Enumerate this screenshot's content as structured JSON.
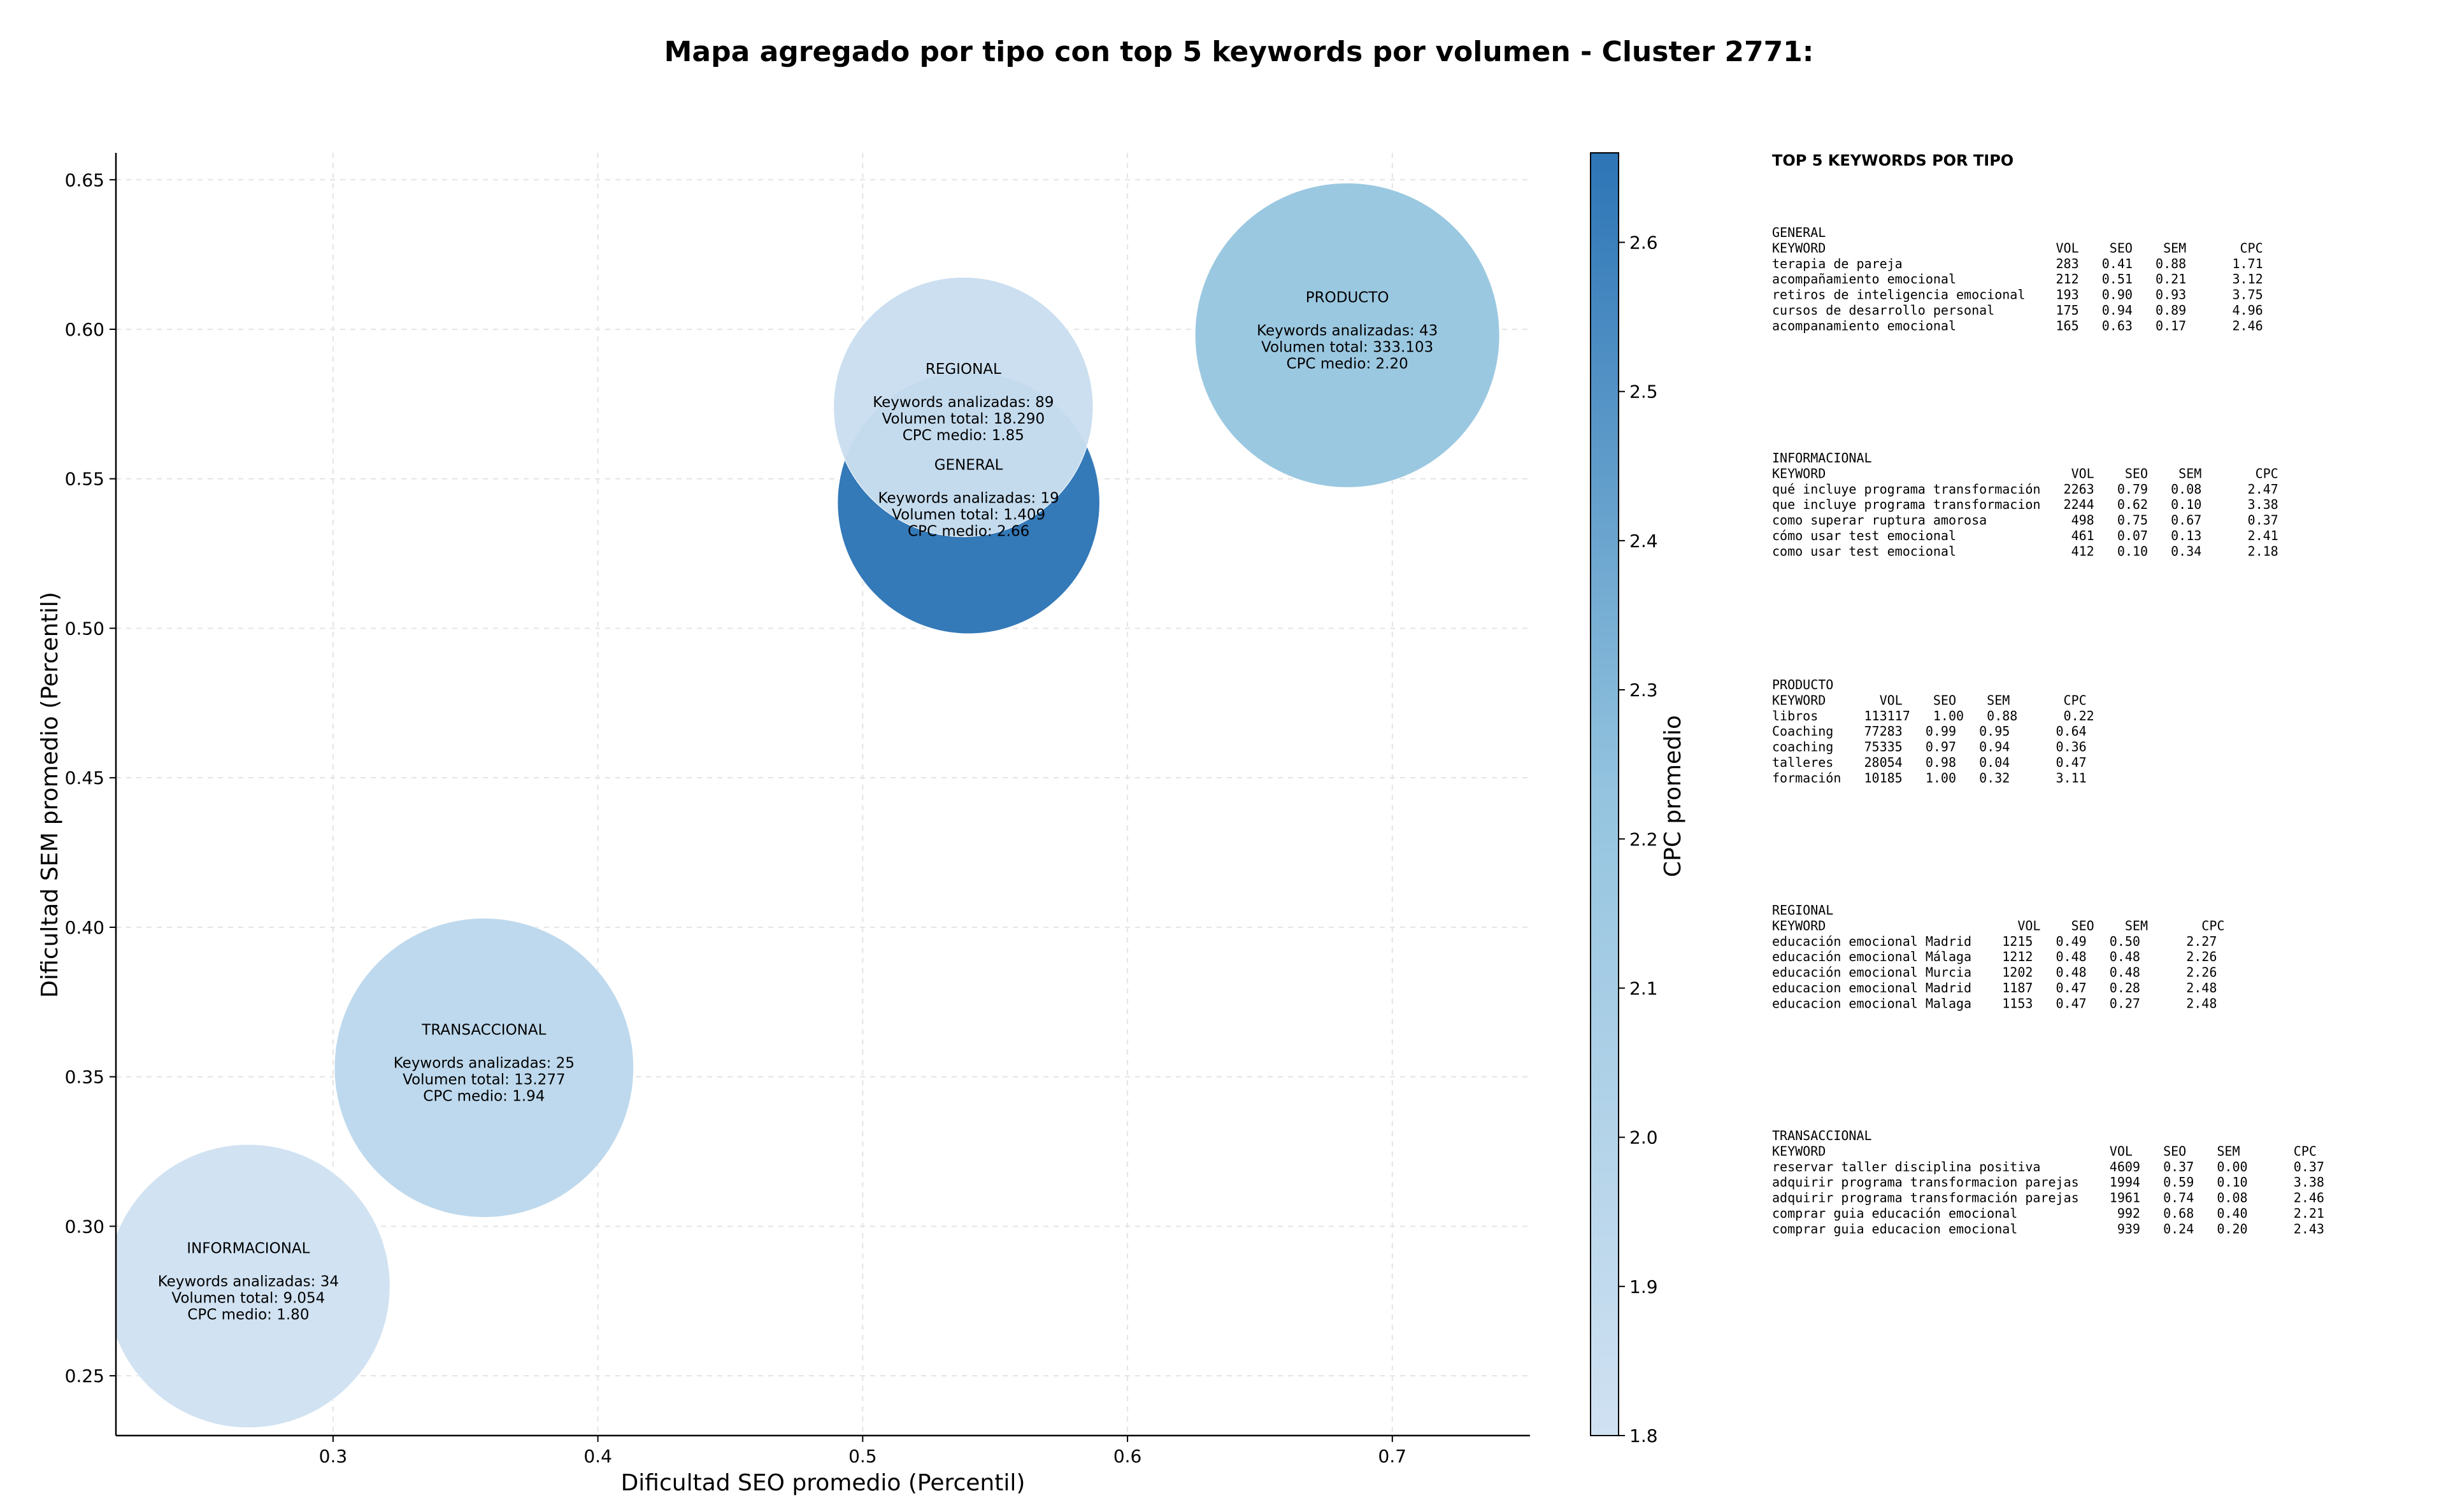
{
  "chart_data": {
    "type": "scatter",
    "title": "Mapa agregado por tipo con top 5 keywords por volumen - Cluster 2771:",
    "xlabel": "Dificultad SEO promedio (Percentil)",
    "ylabel": "Dificultad SEM promedio (Percentil)",
    "xlim": [
      0.218,
      0.752
    ],
    "ylim": [
      0.23,
      0.659
    ],
    "xticks": [
      "0.3",
      "0.4",
      "0.5",
      "0.6",
      "0.7"
    ],
    "yticks": [
      "0.25",
      "0.30",
      "0.35",
      "0.40",
      "0.45",
      "0.50",
      "0.55",
      "0.60",
      "0.65"
    ],
    "grid": true,
    "colorbar": {
      "label": "CPC promedio",
      "range": [
        1.8,
        2.66
      ],
      "ticks": [
        "1.8",
        "1.9",
        "2.0",
        "2.1",
        "2.2",
        "2.3",
        "2.4",
        "2.5",
        "2.6"
      ]
    },
    "size_encoding": "Volumen total",
    "points": [
      {
        "tipo": "INFORMACIONAL",
        "x": 0.268,
        "y": 0.28,
        "keywords_text": "Keywords analizadas: 34",
        "volumen_text": "Volumen total: 9.054",
        "cpc_text": "CPC medio: 1.80",
        "volumen": 9054,
        "cpc": 1.8,
        "radius_units": 0.0535
      },
      {
        "tipo": "TRANSACCIONAL",
        "x": 0.357,
        "y": 0.353,
        "keywords_text": "Keywords analizadas: 25",
        "volumen_text": "Volumen total: 13.277",
        "cpc_text": "CPC medio: 1.94",
        "volumen": 13277,
        "cpc": 1.94,
        "radius_units": 0.0565
      },
      {
        "tipo": "GENERAL",
        "x": 0.54,
        "y": 0.542,
        "keywords_text": "Keywords analizadas: 19",
        "volumen_text": "Volumen total: 1.409",
        "cpc_text": "CPC medio: 2.66",
        "volumen": 1409,
        "cpc": 2.66,
        "radius_units": 0.0495
      },
      {
        "tipo": "REGIONAL",
        "x": 0.538,
        "y": 0.574,
        "keywords_text": "Keywords analizadas: 89",
        "volumen_text": "Volumen total: 18.290",
        "cpc_text": "CPC medio: 1.85",
        "volumen": 18290,
        "cpc": 1.85,
        "radius_units": 0.049
      },
      {
        "tipo": "PRODUCTO",
        "x": 0.683,
        "y": 0.598,
        "keywords_text": "Keywords analizadas: 43",
        "volumen_text": "Volumen total: 333.103",
        "cpc_text": "CPC medio: 2.20",
        "volumen": 333103,
        "cpc": 2.2,
        "radius_units": 0.0575
      }
    ]
  },
  "keywords_panel": {
    "title": "TOP 5 KEYWORDS POR TIPO",
    "groups": [
      {
        "name": "GENERAL",
        "header": "KEYWORD                              VOL    SEO    SEM       CPC",
        "rows": [
          "terapia de pareja                    283   0.41   0.88      1.71",
          "acompañamiento emocional             212   0.51   0.21      3.12",
          "retiros de inteligencia emocional    193   0.90   0.93      3.75",
          "cursos de desarrollo personal        175   0.94   0.89      4.96",
          "acompanamiento emocional             165   0.63   0.17      2.46"
        ]
      },
      {
        "name": "INFORMACIONAL",
        "header": "KEYWORD                                VOL    SEO    SEM       CPC",
        "rows": [
          "qué incluye programa transformación   2263   0.79   0.08      2.47",
          "que incluye programa transformacion   2244   0.62   0.10      3.38",
          "como superar ruptura amorosa           498   0.75   0.67      0.37",
          "cómo usar test emocional               461   0.07   0.13      2.41",
          "como usar test emocional               412   0.10   0.34      2.18"
        ]
      },
      {
        "name": "PRODUCTO",
        "header": "KEYWORD       VOL    SEO    SEM       CPC",
        "rows": [
          "libros      113117   1.00   0.88      0.22",
          "Coaching    77283   0.99   0.95      0.64",
          "coaching    75335   0.97   0.94      0.36",
          "talleres    28054   0.98   0.04      0.47",
          "formación   10185   1.00   0.32      3.11"
        ]
      },
      {
        "name": "REGIONAL",
        "header": "KEYWORD                         VOL    SEO    SEM       CPC",
        "rows": [
          "educación emocional Madrid    1215   0.49   0.50      2.27",
          "educación emocional Málaga    1212   0.48   0.48      2.26",
          "educación emocional Murcia    1202   0.48   0.48      2.26",
          "educacion emocional Madrid    1187   0.47   0.28      2.48",
          "educacion emocional Malaga    1153   0.47   0.27      2.48"
        ]
      },
      {
        "name": "TRANSACCIONAL",
        "header": "KEYWORD                                     VOL    SEO    SEM       CPC",
        "rows": [
          "reservar taller disciplina positiva         4609   0.37   0.00      0.37",
          "adquirir programa transformacion parejas    1994   0.59   0.10      3.38",
          "adquirir programa transformación parejas    1961   0.74   0.08      2.46",
          "comprar guia educación emocional             992   0.68   0.40      2.21",
          "comprar guia educacion emocional             939   0.24   0.20      2.43"
        ]
      }
    ]
  },
  "colors": {
    "colormap_low": "#d0e1f2",
    "colormap_high": "#2d75b6",
    "grid": "#e4e4e4",
    "axis": "#000000"
  }
}
